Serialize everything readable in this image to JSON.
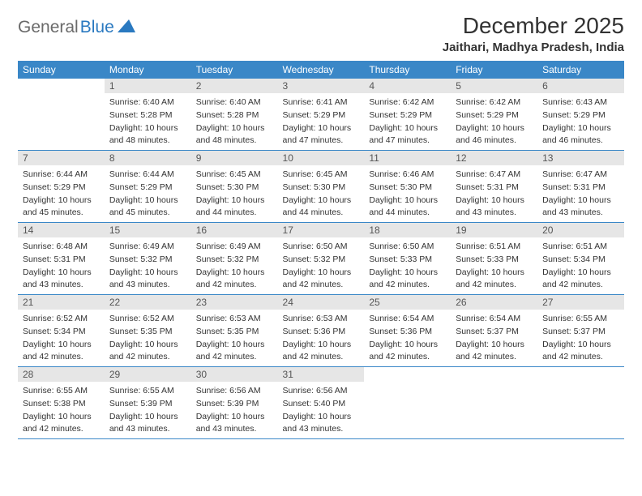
{
  "brand": {
    "t1": "General",
    "t2": "Blue"
  },
  "title": "December 2025",
  "location": "Jaithari, Madhya Pradesh, India",
  "header_bg": "#3a87c7",
  "daynum_bg": "#e6e6e6",
  "divider_color": "#3a87c7",
  "columns": [
    "Sunday",
    "Monday",
    "Tuesday",
    "Wednesday",
    "Thursday",
    "Friday",
    "Saturday"
  ],
  "weeks": [
    [
      null,
      {
        "n": "1",
        "sr": "Sunrise: 6:40 AM",
        "ss": "Sunset: 5:28 PM",
        "dl": "Daylight: 10 hours and 48 minutes."
      },
      {
        "n": "2",
        "sr": "Sunrise: 6:40 AM",
        "ss": "Sunset: 5:28 PM",
        "dl": "Daylight: 10 hours and 48 minutes."
      },
      {
        "n": "3",
        "sr": "Sunrise: 6:41 AM",
        "ss": "Sunset: 5:29 PM",
        "dl": "Daylight: 10 hours and 47 minutes."
      },
      {
        "n": "4",
        "sr": "Sunrise: 6:42 AM",
        "ss": "Sunset: 5:29 PM",
        "dl": "Daylight: 10 hours and 47 minutes."
      },
      {
        "n": "5",
        "sr": "Sunrise: 6:42 AM",
        "ss": "Sunset: 5:29 PM",
        "dl": "Daylight: 10 hours and 46 minutes."
      },
      {
        "n": "6",
        "sr": "Sunrise: 6:43 AM",
        "ss": "Sunset: 5:29 PM",
        "dl": "Daylight: 10 hours and 46 minutes."
      }
    ],
    [
      {
        "n": "7",
        "sr": "Sunrise: 6:44 AM",
        "ss": "Sunset: 5:29 PM",
        "dl": "Daylight: 10 hours and 45 minutes."
      },
      {
        "n": "8",
        "sr": "Sunrise: 6:44 AM",
        "ss": "Sunset: 5:29 PM",
        "dl": "Daylight: 10 hours and 45 minutes."
      },
      {
        "n": "9",
        "sr": "Sunrise: 6:45 AM",
        "ss": "Sunset: 5:30 PM",
        "dl": "Daylight: 10 hours and 44 minutes."
      },
      {
        "n": "10",
        "sr": "Sunrise: 6:45 AM",
        "ss": "Sunset: 5:30 PM",
        "dl": "Daylight: 10 hours and 44 minutes."
      },
      {
        "n": "11",
        "sr": "Sunrise: 6:46 AM",
        "ss": "Sunset: 5:30 PM",
        "dl": "Daylight: 10 hours and 44 minutes."
      },
      {
        "n": "12",
        "sr": "Sunrise: 6:47 AM",
        "ss": "Sunset: 5:31 PM",
        "dl": "Daylight: 10 hours and 43 minutes."
      },
      {
        "n": "13",
        "sr": "Sunrise: 6:47 AM",
        "ss": "Sunset: 5:31 PM",
        "dl": "Daylight: 10 hours and 43 minutes."
      }
    ],
    [
      {
        "n": "14",
        "sr": "Sunrise: 6:48 AM",
        "ss": "Sunset: 5:31 PM",
        "dl": "Daylight: 10 hours and 43 minutes."
      },
      {
        "n": "15",
        "sr": "Sunrise: 6:49 AM",
        "ss": "Sunset: 5:32 PM",
        "dl": "Daylight: 10 hours and 43 minutes."
      },
      {
        "n": "16",
        "sr": "Sunrise: 6:49 AM",
        "ss": "Sunset: 5:32 PM",
        "dl": "Daylight: 10 hours and 42 minutes."
      },
      {
        "n": "17",
        "sr": "Sunrise: 6:50 AM",
        "ss": "Sunset: 5:32 PM",
        "dl": "Daylight: 10 hours and 42 minutes."
      },
      {
        "n": "18",
        "sr": "Sunrise: 6:50 AM",
        "ss": "Sunset: 5:33 PM",
        "dl": "Daylight: 10 hours and 42 minutes."
      },
      {
        "n": "19",
        "sr": "Sunrise: 6:51 AM",
        "ss": "Sunset: 5:33 PM",
        "dl": "Daylight: 10 hours and 42 minutes."
      },
      {
        "n": "20",
        "sr": "Sunrise: 6:51 AM",
        "ss": "Sunset: 5:34 PM",
        "dl": "Daylight: 10 hours and 42 minutes."
      }
    ],
    [
      {
        "n": "21",
        "sr": "Sunrise: 6:52 AM",
        "ss": "Sunset: 5:34 PM",
        "dl": "Daylight: 10 hours and 42 minutes."
      },
      {
        "n": "22",
        "sr": "Sunrise: 6:52 AM",
        "ss": "Sunset: 5:35 PM",
        "dl": "Daylight: 10 hours and 42 minutes."
      },
      {
        "n": "23",
        "sr": "Sunrise: 6:53 AM",
        "ss": "Sunset: 5:35 PM",
        "dl": "Daylight: 10 hours and 42 minutes."
      },
      {
        "n": "24",
        "sr": "Sunrise: 6:53 AM",
        "ss": "Sunset: 5:36 PM",
        "dl": "Daylight: 10 hours and 42 minutes."
      },
      {
        "n": "25",
        "sr": "Sunrise: 6:54 AM",
        "ss": "Sunset: 5:36 PM",
        "dl": "Daylight: 10 hours and 42 minutes."
      },
      {
        "n": "26",
        "sr": "Sunrise: 6:54 AM",
        "ss": "Sunset: 5:37 PM",
        "dl": "Daylight: 10 hours and 42 minutes."
      },
      {
        "n": "27",
        "sr": "Sunrise: 6:55 AM",
        "ss": "Sunset: 5:37 PM",
        "dl": "Daylight: 10 hours and 42 minutes."
      }
    ],
    [
      {
        "n": "28",
        "sr": "Sunrise: 6:55 AM",
        "ss": "Sunset: 5:38 PM",
        "dl": "Daylight: 10 hours and 42 minutes."
      },
      {
        "n": "29",
        "sr": "Sunrise: 6:55 AM",
        "ss": "Sunset: 5:39 PM",
        "dl": "Daylight: 10 hours and 43 minutes."
      },
      {
        "n": "30",
        "sr": "Sunrise: 6:56 AM",
        "ss": "Sunset: 5:39 PM",
        "dl": "Daylight: 10 hours and 43 minutes."
      },
      {
        "n": "31",
        "sr": "Sunrise: 6:56 AM",
        "ss": "Sunset: 5:40 PM",
        "dl": "Daylight: 10 hours and 43 minutes."
      },
      null,
      null,
      null
    ]
  ]
}
